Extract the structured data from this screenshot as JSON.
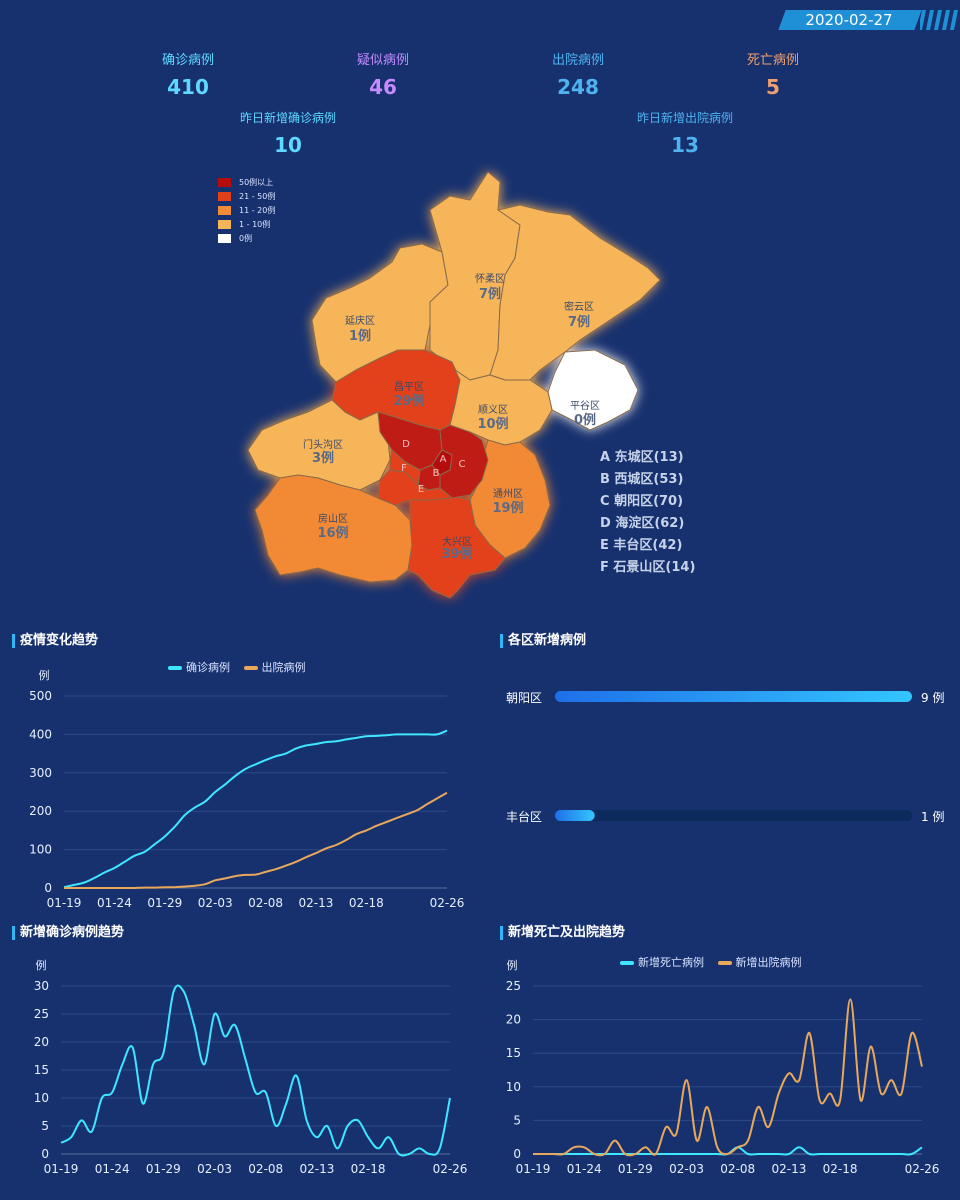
{
  "header": {
    "date": "2020-02-27"
  },
  "stats": [
    {
      "label": "确诊病例",
      "value": "410",
      "label_color": "#5fd9ff",
      "value_color": "#5fd9ff"
    },
    {
      "label": "疑似病例",
      "value": "46",
      "label_color": "#c58bff",
      "value_color": "#c58bff"
    },
    {
      "label": "出院病例",
      "value": "248",
      "label_color": "#4fb3f0",
      "value_color": "#4fb3f0"
    },
    {
      "label": "死亡病例",
      "value": "5",
      "label_color": "#f0a070",
      "value_color": "#f0a070"
    }
  ],
  "daily": [
    {
      "label": "昨日新增确诊病例",
      "value": "10"
    },
    {
      "label": "昨日新增出院病例",
      "value": "13"
    }
  ],
  "map": {
    "legend": [
      {
        "label": "50例以上",
        "color": "#b50d0d"
      },
      {
        "label": "21 - 50例",
        "color": "#e3401a"
      },
      {
        "label": "11 - 20例",
        "color": "#f28a36"
      },
      {
        "label": "1 - 10例",
        "color": "#f7b55a"
      },
      {
        "label": "0例",
        "color": "#ffffff"
      }
    ],
    "districts": [
      {
        "name": "怀柔区",
        "count": "7例",
        "color": "#f7b55a"
      },
      {
        "name": "密云区",
        "count": "7例",
        "color": "#f7b55a"
      },
      {
        "name": "延庆区",
        "count": "1例",
        "color": "#f7b55a"
      },
      {
        "name": "昌平区",
        "count": "29例",
        "color": "#e3401a"
      },
      {
        "name": "顺义区",
        "count": "10例",
        "color": "#f7b55a"
      },
      {
        "name": "平谷区",
        "count": "0例",
        "color": "#ffffff"
      },
      {
        "name": "门头沟区",
        "count": "3例",
        "color": "#f7b55a"
      },
      {
        "name": "房山区",
        "count": "16例",
        "color": "#f28a36"
      },
      {
        "name": "通州区",
        "count": "19例",
        "color": "#f28a36"
      },
      {
        "name": "大兴区",
        "count": "39例",
        "color": "#e3401a"
      }
    ],
    "letters": [
      "D",
      "C",
      "B",
      "A",
      "E",
      "F"
    ],
    "abbreviations": [
      "A 东城区(13)",
      "B 西城区(53)",
      "C 朝阳区(70)",
      "D 海淀区(62)",
      "E 丰台区(42)",
      "F 石景山区(14)"
    ]
  },
  "sections": {
    "trend": "疫情变化趋势",
    "district_new": "各区新增病例",
    "new_confirmed": "新增确诊病例趋势",
    "new_death_discharge": "新增死亡及出院趋势"
  },
  "colors": {
    "confirmed": "#3fe6ff",
    "discharged": "#e8a85c",
    "bar_start": "#1e6fe8",
    "bar_end": "#33c6ff",
    "bar_track": "#0c2a5c"
  },
  "chart_data": [
    {
      "type": "line",
      "title": "疫情变化趋势",
      "ylabel": "例",
      "ylim": [
        0,
        500
      ],
      "yticks": [
        0,
        100,
        200,
        300,
        400,
        500
      ],
      "x_ticks": [
        "01-19",
        "01-24",
        "01-29",
        "02-03",
        "02-08",
        "02-13",
        "02-18",
        "02-26"
      ],
      "x_tick_index": [
        0,
        5,
        10,
        15,
        20,
        25,
        30,
        38
      ],
      "series": [
        {
          "name": "确诊病例",
          "color": "#3fe6ff",
          "values": [
            2,
            8,
            14,
            26,
            40,
            52,
            68,
            84,
            94,
            114,
            134,
            160,
            190,
            210,
            225,
            250,
            270,
            292,
            310,
            322,
            333,
            343,
            350,
            363,
            371,
            375,
            380,
            382,
            387,
            391,
            395,
            396,
            398,
            400,
            400,
            400,
            400,
            400,
            410
          ]
        },
        {
          "name": "出院病例",
          "color": "#e8a85c",
          "values": [
            0,
            0,
            0,
            0,
            0,
            0,
            0,
            0,
            1,
            1,
            2,
            2,
            4,
            6,
            10,
            20,
            25,
            31,
            34,
            35,
            42,
            49,
            58,
            68,
            80,
            91,
            103,
            112,
            125,
            140,
            150,
            162,
            172,
            182,
            192,
            202,
            218,
            233,
            248
          ]
        }
      ]
    },
    {
      "type": "bar",
      "title": "各区新增病例",
      "categories": [
        "朝阳区",
        "丰台区"
      ],
      "values": [
        9,
        1
      ],
      "value_labels": [
        "9 例",
        "1 例"
      ],
      "xlim": [
        0,
        9
      ]
    },
    {
      "type": "line",
      "title": "新增确诊病例趋势",
      "ylabel": "例",
      "ylim": [
        0,
        30
      ],
      "yticks": [
        0,
        5,
        10,
        15,
        20,
        25,
        30
      ],
      "x_ticks": [
        "01-19",
        "01-24",
        "01-29",
        "02-03",
        "02-08",
        "02-13",
        "02-18",
        "02-26"
      ],
      "x_tick_index": [
        0,
        5,
        10,
        15,
        20,
        25,
        30,
        38
      ],
      "series": [
        {
          "name": "新增确诊病例",
          "color": "#3fe6ff",
          "values": [
            2,
            3,
            6,
            4,
            10,
            11,
            16,
            19,
            9,
            16,
            18,
            29,
            29,
            23,
            16,
            25,
            21,
            23,
            17,
            11,
            11,
            5,
            9,
            14,
            6,
            3,
            5,
            1,
            5,
            6,
            3,
            1,
            3,
            0,
            0,
            1,
            0,
            1,
            10
          ]
        }
      ]
    },
    {
      "type": "line",
      "title": "新增死亡及出院趋势",
      "ylabel": "例",
      "ylim": [
        0,
        25
      ],
      "yticks": [
        0,
        5,
        10,
        15,
        20,
        25
      ],
      "x_ticks": [
        "01-19",
        "01-24",
        "01-29",
        "02-03",
        "02-08",
        "02-13",
        "02-18",
        "02-26"
      ],
      "x_tick_index": [
        0,
        5,
        10,
        15,
        20,
        25,
        30,
        38
      ],
      "series": [
        {
          "name": "新增死亡病例",
          "color": "#3fe6ff",
          "values": [
            0,
            0,
            0,
            0,
            0,
            0,
            0,
            0,
            0,
            0,
            0,
            0,
            0,
            0,
            0,
            0,
            0,
            0,
            0,
            0,
            1,
            0,
            0,
            0,
            0,
            0,
            1,
            0,
            0,
            0,
            0,
            0,
            0,
            0,
            0,
            0,
            0,
            0,
            1
          ]
        },
        {
          "name": "新增出院病例",
          "color": "#e8a85c",
          "values": [
            0,
            0,
            0,
            0,
            1,
            1,
            0,
            0,
            2,
            0,
            0,
            1,
            0,
            4,
            3,
            11,
            2,
            7,
            1,
            0,
            1,
            2,
            7,
            4,
            9,
            12,
            11,
            18,
            8,
            9,
            8,
            23,
            8,
            16,
            9,
            11,
            9,
            18,
            13
          ]
        }
      ]
    }
  ]
}
